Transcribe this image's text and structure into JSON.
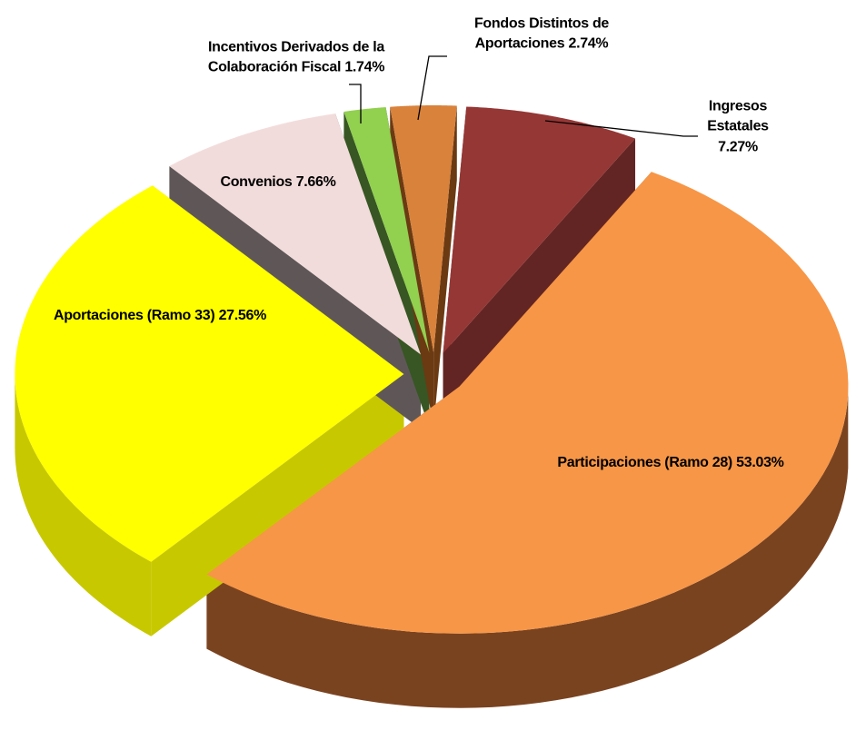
{
  "chart_data": {
    "type": "pie3d",
    "categories": [
      "Ingresos Estatales",
      "Participaciones (Ramo 28)",
      "Aportaciones (Ramo 33)",
      "Convenios",
      "Incentivos Derivados de la Colaboración Fiscal",
      "Fondos Distintos de Aportaciones"
    ],
    "values": [
      7.27,
      53.03,
      27.56,
      7.66,
      1.74,
      2.74
    ],
    "value_labels": [
      "7.27%",
      "53.03%",
      "27.56%",
      "7.66%",
      "1.74%",
      "2.74%"
    ],
    "colors": [
      "#953735",
      "#f79646",
      "#ffff00",
      "#f2dcdb",
      "#92d050",
      "#d9823b"
    ],
    "side_colors": [
      "#632523",
      "#7a4320",
      "#c8c800",
      "#5f5757",
      "#375623",
      "#6b3a12"
    ]
  }
}
